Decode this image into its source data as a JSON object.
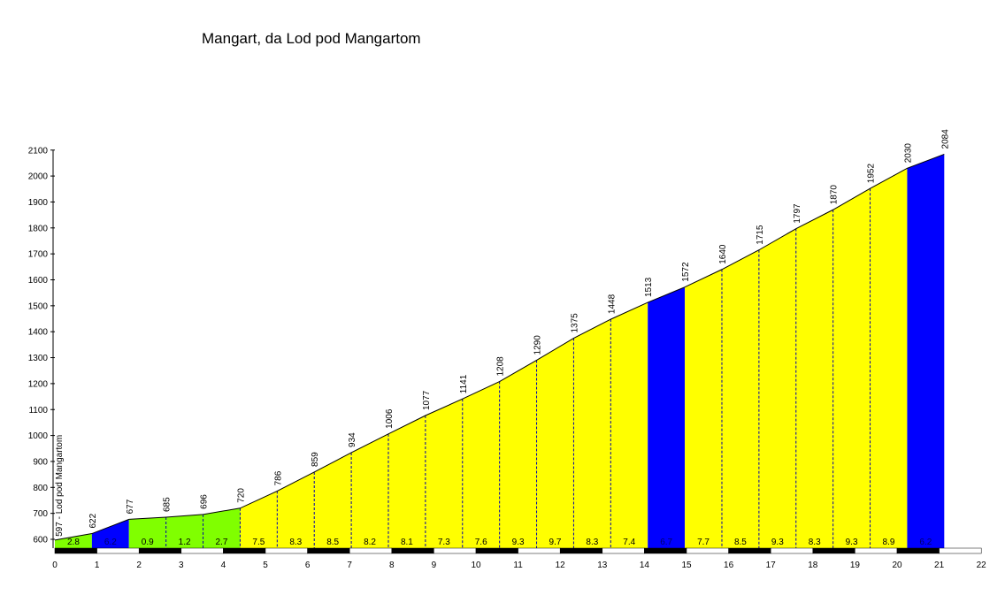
{
  "title": "Mangart, da Lod pod Mangartom",
  "chart_data": {
    "type": "area",
    "title": "Mangart, da Lod pod Mangartom",
    "xlabel": "",
    "ylabel": "",
    "xlim": [
      0,
      22
    ],
    "ylim": [
      560,
      2100
    ],
    "x_ticks": [
      0,
      1,
      2,
      3,
      4,
      5,
      6,
      7,
      8,
      9,
      10,
      11,
      12,
      13,
      14,
      15,
      16,
      17,
      18,
      19,
      20,
      21,
      22
    ],
    "y_ticks": [
      600,
      700,
      800,
      900,
      1000,
      1100,
      1200,
      1300,
      1400,
      1500,
      1600,
      1700,
      1800,
      1900,
      2000,
      2100
    ],
    "start_label": "597 - Lod pod Mangartom",
    "profile_points": [
      {
        "x": 0,
        "elevation": 597
      },
      {
        "x": 0.88,
        "elevation": 622
      },
      {
        "x": 1.76,
        "elevation": 677
      },
      {
        "x": 2.64,
        "elevation": 685
      },
      {
        "x": 3.52,
        "elevation": 696
      },
      {
        "x": 4.4,
        "elevation": 720
      },
      {
        "x": 5.28,
        "elevation": 786
      },
      {
        "x": 6.16,
        "elevation": 859
      },
      {
        "x": 7.04,
        "elevation": 934
      },
      {
        "x": 7.92,
        "elevation": 1006
      },
      {
        "x": 8.8,
        "elevation": 1077
      },
      {
        "x": 9.68,
        "elevation": 1141
      },
      {
        "x": 10.56,
        "elevation": 1208
      },
      {
        "x": 11.44,
        "elevation": 1290
      },
      {
        "x": 12.32,
        "elevation": 1375
      },
      {
        "x": 13.2,
        "elevation": 1448
      },
      {
        "x": 14.08,
        "elevation": 1513
      },
      {
        "x": 14.96,
        "elevation": 1572
      },
      {
        "x": 15.84,
        "elevation": 1640
      },
      {
        "x": 16.72,
        "elevation": 1715
      },
      {
        "x": 17.6,
        "elevation": 1797
      },
      {
        "x": 18.48,
        "elevation": 1870
      },
      {
        "x": 19.36,
        "elevation": 1952
      },
      {
        "x": 20.24,
        "elevation": 2030
      },
      {
        "x": 21.12,
        "elevation": 2084
      }
    ],
    "segments": [
      {
        "gradient": "2.8",
        "color": "#80ff00"
      },
      {
        "gradient": "6.2",
        "color": "#0000ff"
      },
      {
        "gradient": "0.9",
        "color": "#80ff00"
      },
      {
        "gradient": "1.2",
        "color": "#80ff00"
      },
      {
        "gradient": "2.7",
        "color": "#80ff00"
      },
      {
        "gradient": "7.5",
        "color": "#ffff00"
      },
      {
        "gradient": "8.3",
        "color": "#ffff00"
      },
      {
        "gradient": "8.5",
        "color": "#ffff00"
      },
      {
        "gradient": "8.2",
        "color": "#ffff00"
      },
      {
        "gradient": "8.1",
        "color": "#ffff00"
      },
      {
        "gradient": "7.3",
        "color": "#ffff00"
      },
      {
        "gradient": "7.6",
        "color": "#ffff00"
      },
      {
        "gradient": "9.3",
        "color": "#ffff00"
      },
      {
        "gradient": "9.7",
        "color": "#ffff00"
      },
      {
        "gradient": "8.3",
        "color": "#ffff00"
      },
      {
        "gradient": "7.4",
        "color": "#ffff00"
      },
      {
        "gradient": "6.7",
        "color": "#0000ff"
      },
      {
        "gradient": "7.7",
        "color": "#ffff00"
      },
      {
        "gradient": "8.5",
        "color": "#ffff00"
      },
      {
        "gradient": "9.3",
        "color": "#ffff00"
      },
      {
        "gradient": "8.3",
        "color": "#ffff00"
      },
      {
        "gradient": "9.3",
        "color": "#ffff00"
      },
      {
        "gradient": "8.9",
        "color": "#ffff00"
      },
      {
        "gradient": "6.2",
        "color": "#0000ff"
      }
    ],
    "grid": false,
    "legend": "none"
  }
}
